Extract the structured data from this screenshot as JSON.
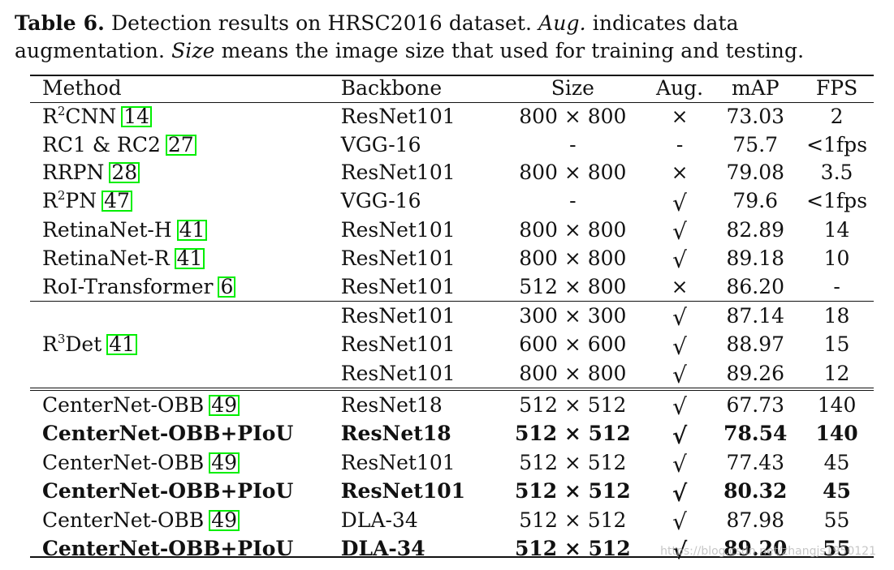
{
  "caption": {
    "label": "Table 6.",
    "text_1": " Detection results on HRSC2016 dataset. ",
    "aug_term": "Aug.",
    "text_2": " indicates data augmentation. ",
    "size_term": "Size",
    "text_3": " means the image size that used for training and testing."
  },
  "headers": {
    "method": "Method",
    "backbone": "Backbone",
    "size": "Size",
    "aug": "Aug.",
    "map": "mAP",
    "fps": "FPS"
  },
  "symbols": {
    "check": "√",
    "cross": "×"
  },
  "rows_group1": [
    {
      "method_pre": "R",
      "sup": "2",
      "method_post": "CNN",
      "ref": "14",
      "backbone": "ResNet101",
      "size": "800 × 800",
      "aug": "×",
      "map": "73.03",
      "fps": "2"
    },
    {
      "method_pre": "RC1 & RC2",
      "sup": "",
      "method_post": "",
      "ref": "27",
      "backbone": "VGG-16",
      "size": "-",
      "aug": "-",
      "map": "75.7",
      "fps": "<1fps"
    },
    {
      "method_pre": "RRPN",
      "sup": "",
      "method_post": "",
      "ref": "28",
      "backbone": "ResNet101",
      "size": "800 × 800",
      "aug": "×",
      "map": "79.08",
      "fps": "3.5"
    },
    {
      "method_pre": "R",
      "sup": "2",
      "method_post": "PN",
      "ref": "47",
      "backbone": "VGG-16",
      "size": "-",
      "aug": "√",
      "map": "79.6",
      "fps": "<1fps"
    },
    {
      "method_pre": "RetinaNet-H",
      "sup": "",
      "method_post": "",
      "ref": "41",
      "backbone": "ResNet101",
      "size": "800 × 800",
      "aug": "√",
      "map": "82.89",
      "fps": "14"
    },
    {
      "method_pre": "RetinaNet-R",
      "sup": "",
      "method_post": "",
      "ref": "41",
      "backbone": "ResNet101",
      "size": "800 × 800",
      "aug": "√",
      "map": "89.18",
      "fps": "10"
    },
    {
      "method_pre": "RoI-Transformer",
      "sup": "",
      "method_post": "",
      "ref": "6",
      "backbone": "ResNet101",
      "size": "512 × 800",
      "aug": "×",
      "map": "86.20",
      "fps": "-"
    }
  ],
  "r3det": {
    "method_pre": "R",
    "sup": "3",
    "method_post": "Det",
    "ref": "41",
    "rows": [
      {
        "backbone": "ResNet101",
        "size": "300 × 300",
        "aug": "√",
        "map": "87.14",
        "fps": "18"
      },
      {
        "backbone": "ResNet101",
        "size": "600 × 600",
        "aug": "√",
        "map": "88.97",
        "fps": "15"
      },
      {
        "backbone": "ResNet101",
        "size": "800 × 800",
        "aug": "√",
        "map": "89.26",
        "fps": "12"
      }
    ]
  },
  "rows_group3": [
    {
      "method": "CenterNet-OBB",
      "ref": "49",
      "bold": false,
      "backbone": "ResNet18",
      "size": "512 × 512",
      "aug": "√",
      "map": "67.73",
      "fps": "140"
    },
    {
      "method": "CenterNet-OBB+PIoU",
      "ref": "",
      "bold": true,
      "backbone": "ResNet18",
      "size": "512 × 512",
      "aug": "√",
      "map": "78.54",
      "fps": "140"
    },
    {
      "method": "CenterNet-OBB",
      "ref": "49",
      "bold": false,
      "backbone": "ResNet101",
      "size": "512 × 512",
      "aug": "√",
      "map": "77.43",
      "fps": "45"
    },
    {
      "method": "CenterNet-OBB+PIoU",
      "ref": "",
      "bold": true,
      "backbone": "ResNet101",
      "size": "512 × 512",
      "aug": "√",
      "map": "80.32",
      "fps": "45"
    },
    {
      "method": "CenterNet-OBB",
      "ref": "49",
      "bold": false,
      "backbone": "DLA-34",
      "size": "512 × 512",
      "aug": "√",
      "map": "87.98",
      "fps": "55"
    },
    {
      "method": "CenterNet-OBB+PIoU",
      "ref": "",
      "bold": true,
      "backbone": "DLA-34",
      "size": "512 × 512",
      "aug": "√",
      "map": "89.20",
      "fps": "55"
    }
  ],
  "watermark": "https://blog.csdn.net/zhangjs1950121"
}
